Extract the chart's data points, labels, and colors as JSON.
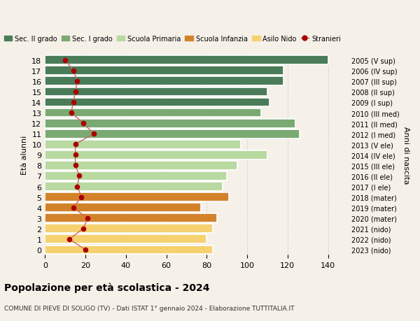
{
  "ages": [
    0,
    1,
    2,
    3,
    4,
    5,
    6,
    7,
    8,
    9,
    10,
    11,
    12,
    13,
    14,
    15,
    16,
    17,
    18
  ],
  "anni_nascita": [
    "2023 (nido)",
    "2022 (nido)",
    "2021 (nido)",
    "2020 (mater)",
    "2019 (mater)",
    "2018 (mater)",
    "2017 (I ele)",
    "2016 (II ele)",
    "2015 (III ele)",
    "2014 (IV ele)",
    "2013 (V ele)",
    "2012 (I med)",
    "2011 (II med)",
    "2010 (III med)",
    "2009 (I sup)",
    "2008 (II sup)",
    "2007 (III sup)",
    "2006 (IV sup)",
    "2005 (V sup)"
  ],
  "bar_values": [
    83,
    80,
    83,
    85,
    77,
    91,
    88,
    90,
    95,
    110,
    97,
    126,
    124,
    107,
    111,
    110,
    118,
    118,
    140
  ],
  "stranieri": [
    20,
    12,
    19,
    21,
    14,
    18,
    16,
    17,
    15,
    15,
    15,
    24,
    19,
    13,
    14,
    15,
    16,
    14,
    10
  ],
  "bar_colors": {
    "sec2": "#4a7c59",
    "sec1": "#7aaa72",
    "primaria": "#b8d9a0",
    "infanzia": "#d2832a",
    "nido": "#f5d170"
  },
  "age_groups": {
    "sec2": [
      14,
      15,
      16,
      17,
      18
    ],
    "sec1": [
      11,
      12,
      13
    ],
    "primaria": [
      6,
      7,
      8,
      9,
      10
    ],
    "infanzia": [
      3,
      4,
      5
    ],
    "nido": [
      0,
      1,
      2
    ]
  },
  "legend_labels": [
    "Sec. II grado",
    "Sec. I grado",
    "Scuola Primaria",
    "Scuola Infanzia",
    "Asilo Nido",
    "Stranieri"
  ],
  "legend_colors": [
    "#4a7c59",
    "#7aaa72",
    "#b8d9a0",
    "#d2832a",
    "#f5d170",
    "#aa0000"
  ],
  "title": "Popolazione per età scolastica - 2024",
  "subtitle": "COMUNE DI PIEVE DI SOLIGO (TV) - Dati ISTAT 1° gennaio 2024 - Elaborazione TUTTITALIA.IT",
  "ylabel_left": "Età alunni",
  "ylabel_right": "Anni di nascita",
  "xlim": [
    0,
    150
  ],
  "background_color": "#f5f0e8",
  "grid_color": "#cccccc",
  "stranieri_color": "#aa0000",
  "stranieri_line_color": "#cc6666"
}
